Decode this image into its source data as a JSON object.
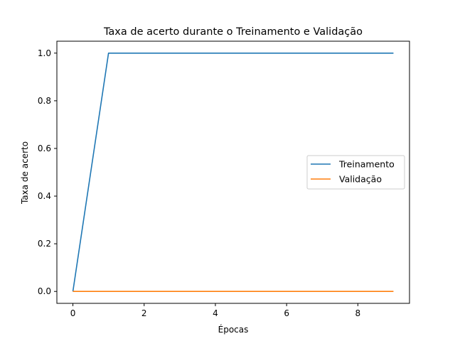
{
  "chart_data": {
    "type": "line",
    "title": "Taxa de acerto durante o Treinamento e Validação",
    "xlabel": "Épocas",
    "ylabel": "Taxa de acerto",
    "x": [
      0,
      1,
      2,
      3,
      4,
      5,
      6,
      7,
      8,
      9
    ],
    "xlim": [
      -0.45,
      9.45
    ],
    "ylim": [
      -0.05,
      1.05
    ],
    "xticks": [
      0,
      2,
      4,
      6,
      8
    ],
    "yticks": [
      0.0,
      0.2,
      0.4,
      0.6,
      0.8,
      1.0
    ],
    "xtick_labels": [
      "0",
      "2",
      "4",
      "6",
      "8"
    ],
    "ytick_labels": [
      "0.0",
      "0.2",
      "0.4",
      "0.6",
      "0.8",
      "1.0"
    ],
    "grid": false,
    "legend_position": "center-right",
    "series": [
      {
        "name": "Treinamento",
        "color": "#1f77b4",
        "values": [
          0,
          1,
          1,
          1,
          1,
          1,
          1,
          1,
          1,
          1
        ]
      },
      {
        "name": "Validação",
        "color": "#ff7f0e",
        "values": [
          0,
          0,
          0,
          0,
          0,
          0,
          0,
          0,
          0,
          0
        ]
      }
    ]
  }
}
